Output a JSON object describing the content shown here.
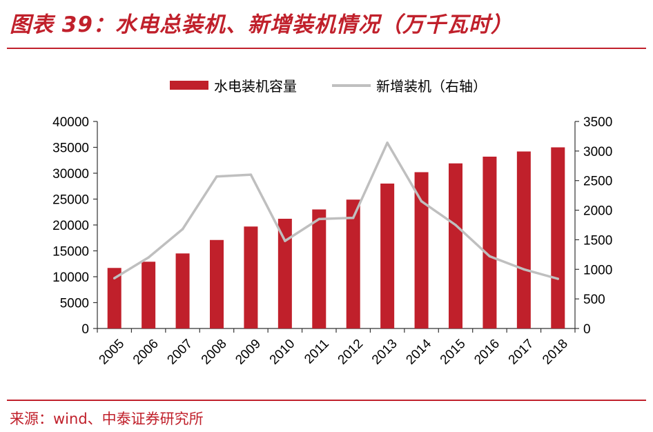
{
  "title": "图表 39：水电总装机、新增装机情况（万千瓦时）",
  "source": "来源：wind、中泰证券研究所",
  "colors": {
    "bar": "#c0202b",
    "line": "#bfbfbf",
    "accent": "#c0202b"
  },
  "chart_data": {
    "type": "bar",
    "categories": [
      "2005",
      "2006",
      "2007",
      "2008",
      "2009",
      "2010",
      "2011",
      "2012",
      "2013",
      "2014",
      "2015",
      "2016",
      "2017",
      "2018"
    ],
    "series": [
      {
        "name": "水电装机容量",
        "type": "bar",
        "axis": "left",
        "values": [
          11700,
          12900,
          14500,
          17100,
          19700,
          21200,
          23000,
          24900,
          28000,
          30200,
          31900,
          33200,
          34200,
          35000
        ]
      },
      {
        "name": "新增装机（右轴）",
        "type": "line",
        "axis": "right",
        "values": [
          850,
          1200,
          1680,
          2570,
          2600,
          1480,
          1850,
          1870,
          3140,
          2150,
          1750,
          1220,
          1000,
          840
        ]
      }
    ],
    "y_left": {
      "min": 0,
      "max": 40000,
      "ticks": [
        0,
        5000,
        10000,
        15000,
        20000,
        25000,
        30000,
        35000,
        40000
      ]
    },
    "y_right": {
      "min": 0,
      "max": 3500,
      "ticks": [
        0,
        500,
        1000,
        1500,
        2000,
        2500,
        3000,
        3500
      ]
    },
    "legend_position": "top-center",
    "grid": false
  }
}
